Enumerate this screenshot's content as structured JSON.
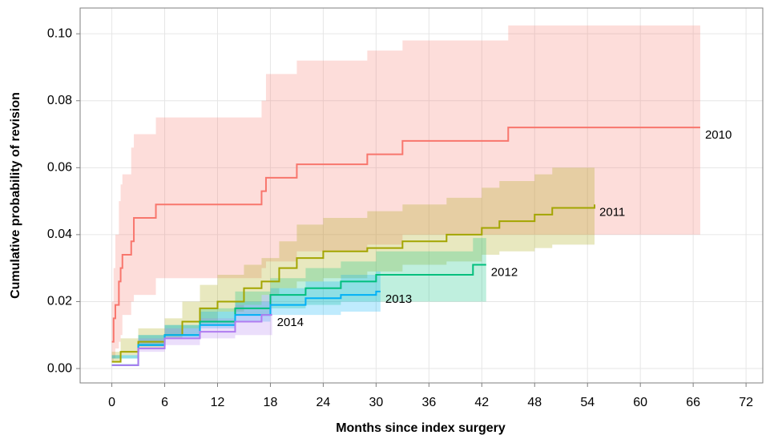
{
  "chart_data": {
    "type": "step",
    "xlabel": "Months since index surgery",
    "ylabel": "Cumulative probability of revision",
    "xlim": [
      -3.6,
      73.9
    ],
    "ylim": [
      -0.0043,
      0.1077
    ],
    "xticks": [
      0,
      6,
      12,
      18,
      24,
      30,
      36,
      42,
      48,
      54,
      60,
      66,
      72
    ],
    "yticks": [
      {
        "value": 0,
        "label": "0.00"
      },
      {
        "value": 0.02,
        "label": "0.02"
      },
      {
        "value": 0.04,
        "label": "0.04"
      },
      {
        "value": 0.06,
        "label": "0.06"
      },
      {
        "value": 0.08,
        "label": "0.08"
      },
      {
        "value": 0.1,
        "label": "0.10"
      }
    ],
    "grid": true,
    "series": [
      {
        "name": "2010",
        "color": "#f8766d",
        "x": [
          0,
          0.2,
          0.4,
          0.8,
          1.0,
          1.2,
          2.2,
          2.5,
          5,
          17,
          17.5,
          21,
          29,
          33,
          45,
          66.8
        ],
        "values": [
          0.008,
          0.015,
          0.019,
          0.026,
          0.03,
          0.034,
          0.038,
          0.045,
          0.049,
          0.053,
          0.057,
          0.061,
          0.064,
          0.068,
          0.072,
          0.072
        ],
        "lower": [
          0.001,
          0.002,
          0.003,
          0.006,
          0.008,
          0.01,
          0.016,
          0.02,
          0.022,
          0.027,
          0.03,
          0.032,
          0.035,
          0.037,
          0.04,
          0.04
        ],
        "upper": [
          0.02,
          0.03,
          0.04,
          0.05,
          0.055,
          0.058,
          0.066,
          0.07,
          0.075,
          0.08,
          0.088,
          0.092,
          0.095,
          0.098,
          0.1025,
          0.1025
        ]
      },
      {
        "name": "2011",
        "color": "#a3a500",
        "x": [
          0,
          1,
          3,
          6,
          8,
          10,
          12,
          15,
          17,
          19,
          21,
          24,
          29,
          33,
          38,
          42,
          44,
          48,
          50,
          54.8
        ],
        "values": [
          0.002,
          0.005,
          0.008,
          0.01,
          0.014,
          0.018,
          0.02,
          0.024,
          0.026,
          0.03,
          0.033,
          0.035,
          0.036,
          0.038,
          0.04,
          0.042,
          0.044,
          0.046,
          0.048,
          0.049
        ],
        "lower": [
          0.0,
          0.002,
          0.004,
          0.006,
          0.009,
          0.012,
          0.014,
          0.017,
          0.019,
          0.022,
          0.024,
          0.026,
          0.027,
          0.029,
          0.031,
          0.032,
          0.034,
          0.035,
          0.036,
          0.037
        ],
        "upper": [
          0.005,
          0.009,
          0.012,
          0.015,
          0.02,
          0.025,
          0.028,
          0.031,
          0.033,
          0.038,
          0.043,
          0.045,
          0.047,
          0.049,
          0.051,
          0.054,
          0.056,
          0.058,
          0.06,
          0.061
        ]
      },
      {
        "name": "2012",
        "color": "#00bf7d",
        "x": [
          0,
          3,
          6,
          10,
          14,
          18,
          22,
          26,
          30,
          41,
          42.5
        ],
        "values": [
          0.001,
          0.007,
          0.01,
          0.014,
          0.018,
          0.022,
          0.024,
          0.026,
          0.028,
          0.031,
          0.031
        ],
        "lower": [
          0.0,
          0.004,
          0.007,
          0.01,
          0.013,
          0.016,
          0.018,
          0.019,
          0.02,
          0.02,
          0.02
        ],
        "upper": [
          0.003,
          0.01,
          0.013,
          0.018,
          0.023,
          0.027,
          0.03,
          0.032,
          0.035,
          0.039,
          0.039
        ]
      },
      {
        "name": "2013",
        "color": "#00b0f6",
        "x": [
          0,
          3,
          6,
          10,
          14,
          18,
          22,
          26,
          30,
          30.5
        ],
        "values": [
          0.001,
          0.007,
          0.01,
          0.013,
          0.016,
          0.019,
          0.021,
          0.022,
          0.023,
          0.023
        ],
        "lower": [
          0.0,
          0.004,
          0.007,
          0.009,
          0.012,
          0.014,
          0.016,
          0.016,
          0.017,
          0.017
        ],
        "upper": [
          0.003,
          0.01,
          0.013,
          0.017,
          0.02,
          0.024,
          0.026,
          0.028,
          0.029,
          0.029
        ]
      },
      {
        "name": "2014",
        "color": "#b07cf0",
        "x": [
          0,
          3,
          6,
          10,
          14,
          17,
          18.2
        ],
        "values": [
          0.001,
          0.006,
          0.009,
          0.011,
          0.014,
          0.016,
          0.016
        ],
        "lower": [
          0.0,
          0.003,
          0.005,
          0.007,
          0.009,
          0.01,
          0.01
        ],
        "upper": [
          0.003,
          0.009,
          0.012,
          0.015,
          0.019,
          0.022,
          0.022
        ]
      }
    ]
  }
}
